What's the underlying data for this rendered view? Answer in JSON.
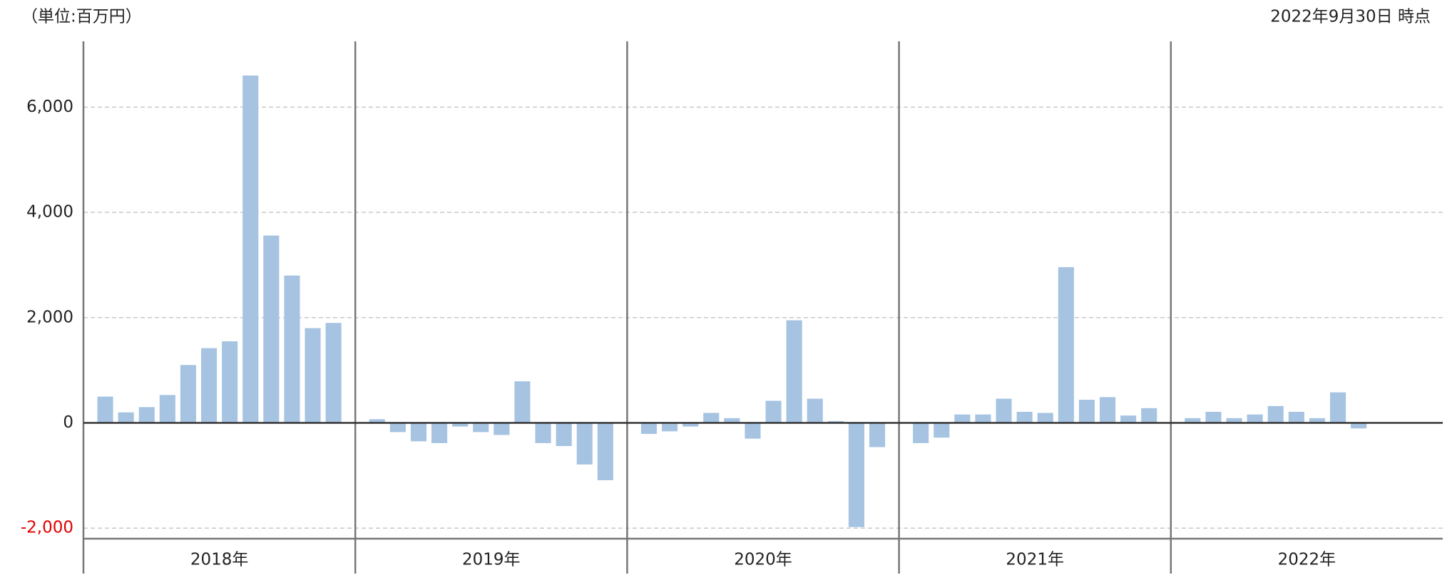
{
  "unit_note": "（単位:百万円）",
  "as_of": "2022年9月30日 時点",
  "chart_data": {
    "type": "bar",
    "categories": [
      "2018年",
      "2019年",
      "2020年",
      "2021年",
      "2022年"
    ],
    "values": [
      [
        500,
        200,
        300,
        530,
        1100,
        1420,
        1550,
        6600,
        3560,
        2800,
        1800,
        1900
      ],
      [
        70,
        -175,
        -350,
        -385,
        -70,
        -175,
        -230,
        790,
        -385,
        -440,
        -790,
        -1090
      ],
      [
        -210,
        -160,
        -70,
        190,
        90,
        -300,
        420,
        1950,
        460,
        35,
        -1980,
        -460
      ],
      [
        -385,
        -280,
        160,
        160,
        460,
        210,
        190,
        2960,
        440,
        490,
        140,
        280
      ],
      [
        90,
        210,
        90,
        160,
        320,
        210,
        90,
        580,
        -105
      ]
    ],
    "color": "#a6c4e2",
    "ylim": [
      -2200,
      7250
    ],
    "yticks": [
      {
        "value": -2000,
        "label": "-2,000"
      },
      0,
      {
        "value": 2000,
        "label": "2,000"
      },
      {
        "value": 4000,
        "label": "4,000"
      },
      {
        "value": 6000,
        "label": "6,000"
      }
    ],
    "negative_tick_color": "#e00000",
    "grid": true
  }
}
